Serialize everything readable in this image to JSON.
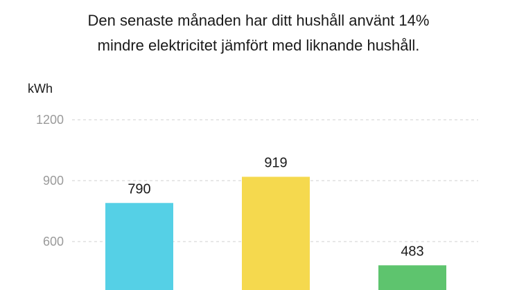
{
  "headline": {
    "line1": "Den senaste månaden har ditt hushåll använt 14%",
    "line2": "mindre elektricitet jämfört med liknande hushåll."
  },
  "chart_data": {
    "type": "bar",
    "title": "Den senaste månaden har ditt hushåll använt 14% mindre elektricitet jämfört med liknande hushåll.",
    "ylabel": "kWh",
    "xlabel": "",
    "ylim": [
      0,
      1200
    ],
    "yticks": [
      600,
      900,
      1200
    ],
    "grid": true,
    "categories": [
      "",
      "",
      ""
    ],
    "values": [
      790,
      919,
      483
    ],
    "colors": [
      "#55d0e6",
      "#f5d94e",
      "#5ec46e"
    ]
  }
}
